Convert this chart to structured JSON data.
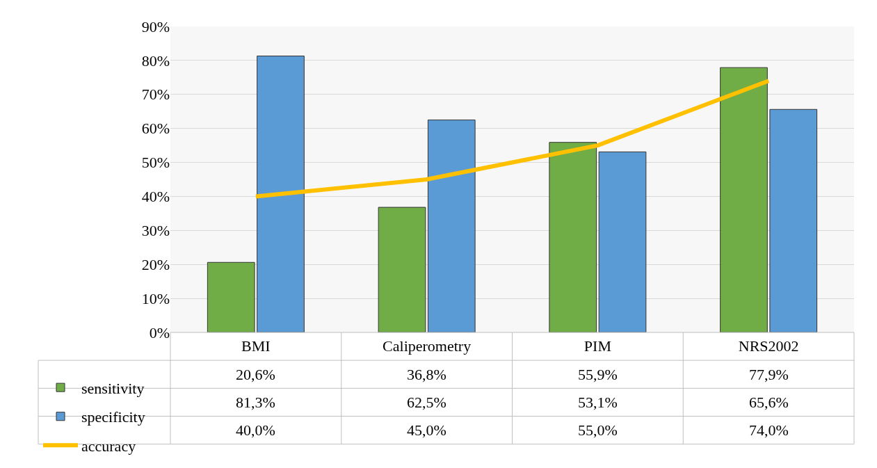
{
  "chart_data": {
    "type": "bar",
    "categories": [
      "BMI",
      "Caliperometry",
      "PIM",
      "NRS2002"
    ],
    "series": [
      {
        "name": "sensitivity",
        "color": "#70ad47",
        "values": [
          20.6,
          36.8,
          55.9,
          77.9
        ],
        "value_labels": [
          "20,6%",
          "36,8%",
          "55,9%",
          "77,9%"
        ]
      },
      {
        "name": "specificity",
        "color": "#5b9bd5",
        "values": [
          81.3,
          62.5,
          53.1,
          65.6
        ],
        "value_labels": [
          "81,3%",
          "62,5%",
          "53,1%",
          "65,6%"
        ]
      },
      {
        "name": "accuracy",
        "type": "line",
        "color": "#ffc000",
        "values": [
          40.0,
          45.0,
          55.0,
          74.0
        ],
        "value_labels": [
          "40,0%",
          "45,0%",
          "55,0%",
          "74,0%"
        ]
      }
    ],
    "ylim": [
      0,
      90
    ],
    "yticks": [
      {
        "value": 0,
        "label": "0%"
      },
      {
        "value": 10,
        "label": "10%"
      },
      {
        "value": 20,
        "label": "20%"
      },
      {
        "value": 30,
        "label": "30%"
      },
      {
        "value": 40,
        "label": "40%"
      },
      {
        "value": 50,
        "label": "50%"
      },
      {
        "value": 60,
        "label": "60%"
      },
      {
        "value": 70,
        "label": "70%"
      },
      {
        "value": 80,
        "label": "80%"
      },
      {
        "value": 90,
        "label": "90%"
      }
    ],
    "grid": "y",
    "legend": "bottom left",
    "marker": "none",
    "line_style": "solid"
  }
}
